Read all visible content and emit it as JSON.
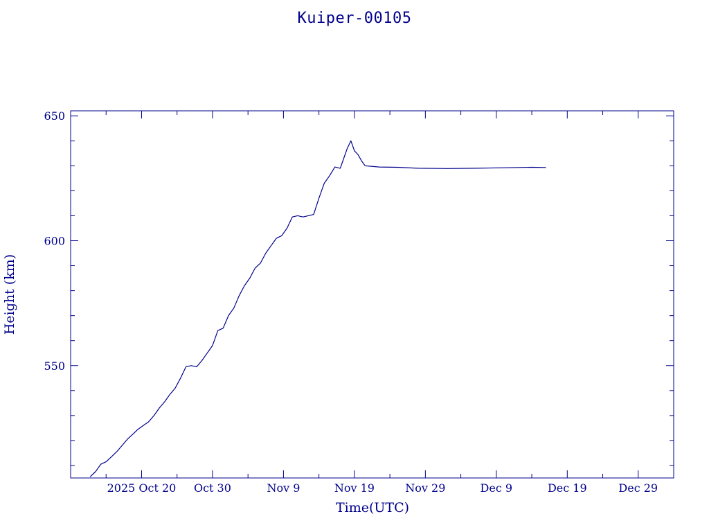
{
  "chart_data": {
    "type": "line",
    "title": "Kuiper-00105",
    "xlabel": "Time(UTC)",
    "ylabel": "Height (km)",
    "xlim": [
      "2025-10-10",
      "2026-01-03"
    ],
    "ylim": [
      505,
      652
    ],
    "x_ticks": [
      {
        "date": "2025-10-20",
        "label": "2025 Oct 20"
      },
      {
        "date": "2025-10-30",
        "label": "Oct 30"
      },
      {
        "date": "2025-11-09",
        "label": "Nov  9"
      },
      {
        "date": "2025-11-19",
        "label": "Nov 19"
      },
      {
        "date": "2025-11-29",
        "label": "Nov 29"
      },
      {
        "date": "2025-12-09",
        "label": "Dec  9"
      },
      {
        "date": "2025-12-19",
        "label": "Dec 19"
      },
      {
        "date": "2025-12-29",
        "label": "Dec 29"
      }
    ],
    "y_ticks": [
      550,
      600,
      650
    ],
    "grid": false,
    "line_color": "#00008b",
    "series": [
      {
        "x": [
          "2025-10-12T18:00",
          "2025-10-13T12:00",
          "2025-10-14T06:00",
          "2025-10-15T00:00",
          "2025-10-15T18:00",
          "2025-10-16T12:00",
          "2025-10-17T06:00",
          "2025-10-18T00:00",
          "2025-10-18T18:00",
          "2025-10-19T12:00",
          "2025-10-20T06:00",
          "2025-10-21T00:00",
          "2025-10-21T18:00",
          "2025-10-22T12:00",
          "2025-10-23T06:00",
          "2025-10-24T00:00",
          "2025-10-24T18:00",
          "2025-10-25T12:00",
          "2025-10-26T06:00",
          "2025-10-27T00:00",
          "2025-10-27T18:00",
          "2025-10-28T12:00",
          "2025-10-29T06:00",
          "2025-10-30T00:00",
          "2025-10-30T18:00",
          "2025-10-31T12:00",
          "2025-11-01T06:00",
          "2025-11-02T00:00",
          "2025-11-02T18:00",
          "2025-11-03T12:00",
          "2025-11-04T06:00",
          "2025-11-05T00:00",
          "2025-11-05T18:00",
          "2025-11-06T12:00",
          "2025-11-07T06:00",
          "2025-11-08T00:00",
          "2025-11-08T18:00",
          "2025-11-09T12:00",
          "2025-11-10T06:00",
          "2025-11-11T00:00",
          "2025-11-11T18:00",
          "2025-11-12T12:00",
          "2025-11-13T06:00",
          "2025-11-14T00:00",
          "2025-11-14T18:00",
          "2025-11-15T12:00",
          "2025-11-16T06:00",
          "2025-11-17T00:00",
          "2025-11-17T12:00",
          "2025-11-18T00:00",
          "2025-11-18T12:00",
          "2025-11-19T00:00",
          "2025-11-19T12:00",
          "2025-11-20T00:00",
          "2025-11-20T12:00",
          "2025-11-21T06:00",
          "2025-11-22T12:00",
          "2025-11-25T00:00",
          "2025-11-28T00:00",
          "2025-12-02T00:00",
          "2025-12-06T00:00",
          "2025-12-10T00:00",
          "2025-12-14T00:00",
          "2025-12-16T00:00"
        ],
        "values": [
          505.5,
          507.5,
          510.5,
          511.5,
          513.5,
          515.5,
          518.0,
          520.5,
          522.5,
          524.5,
          526.0,
          527.5,
          530.0,
          533.0,
          535.5,
          538.5,
          541.0,
          545.0,
          549.5,
          550.0,
          549.5,
          552.0,
          555.0,
          558.0,
          564.0,
          565.0,
          570.0,
          573.0,
          578.0,
          582.0,
          585.0,
          589.0,
          591.0,
          595.0,
          598.0,
          601.0,
          602.0,
          605.0,
          609.5,
          610.0,
          609.5,
          610.0,
          610.5,
          617.0,
          623.0,
          626.0,
          629.5,
          629.0,
          633.0,
          637.0,
          640.0,
          636.0,
          634.5,
          632.0,
          630.0,
          629.8,
          629.5,
          629.4,
          629.0,
          628.9,
          629.0,
          629.2,
          629.4,
          629.3
        ]
      }
    ]
  }
}
